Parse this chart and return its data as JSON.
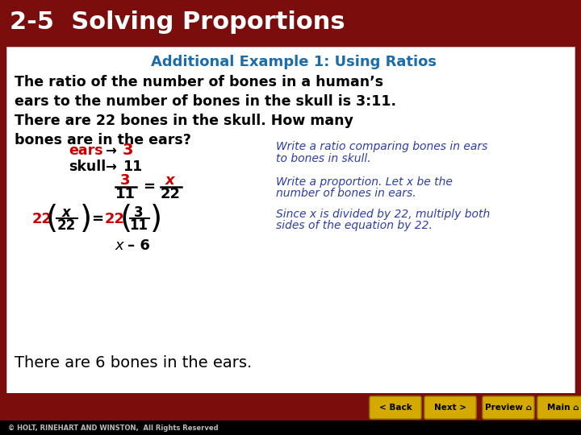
{
  "header_bg": "#7B0D0D",
  "header_text": "2-5  Solving Proportions",
  "header_text_color": "#FFFFFF",
  "content_bg": "#FFFFFF",
  "subtitle_text": "Additional Example 1: Using Ratios",
  "subtitle_color": "#1B6CA8",
  "problem_text_lines": [
    "The ratio of the number of bones in a human’s",
    "ears to the number of bones in the skull is 3:11.",
    "There are 22 bones in the skull. How many",
    "bones are in the ears?"
  ],
  "red_color": "#CC0000",
  "italic_blue": "#2E3FA3",
  "black_color": "#000000",
  "footer_bg": "#7B0D0D",
  "footer_bottom_bg": "#000000",
  "footer_text": "© HOLT, RINEHART AND WINSTON,  All Rights Reserved",
  "button_color": "#D4AA00",
  "button_text_color": "#000000",
  "button_labels": [
    "< Back",
    "Next >",
    "Preview ",
    "Main "
  ]
}
